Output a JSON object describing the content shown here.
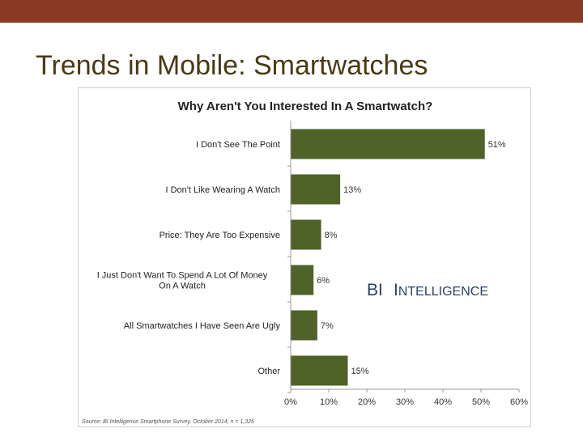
{
  "slide": {
    "title": "Trends in Mobile: Smartwatches",
    "top_bar_color": "#8b3a26",
    "title_color": "#4a3a14"
  },
  "chart_data": {
    "type": "bar",
    "orientation": "horizontal",
    "title": "Why Aren't You Interested In A Smartwatch?",
    "categories": [
      [
        "I Don't See The Point"
      ],
      [
        "I Don't Like Wearing A Watch"
      ],
      [
        "Price: They Are Too Expensive"
      ],
      [
        "I Just Don't Want To Spend A Lot Of Money",
        "On A Watch"
      ],
      [
        "All Smartwatches I Have Seen Are Ugly"
      ],
      [
        "Other"
      ]
    ],
    "values": [
      51,
      13,
      8,
      6,
      7,
      15
    ],
    "value_labels": [
      "51%",
      "13%",
      "8%",
      "6%",
      "7%",
      "15%"
    ],
    "xlim": [
      0,
      60
    ],
    "x_ticks": [
      "0%",
      "10%",
      "20%",
      "30%",
      "40%",
      "50%",
      "60%"
    ],
    "bar_color": "#4f6228",
    "grid": false,
    "watermark": "BI Intelligence",
    "source": "Source: BI Intelligence Smartphone Survey, October 2014; n = 1,326"
  }
}
